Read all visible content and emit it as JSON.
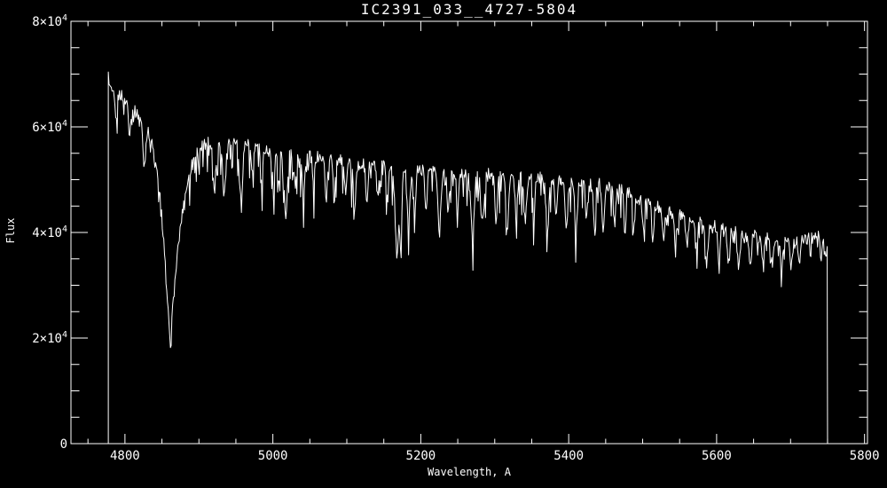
{
  "chart_data": {
    "type": "line",
    "title": "IC2391_033__4727-5804",
    "xlabel": "Wavelength, A",
    "ylabel": "Flux",
    "xlim": [
      4727,
      5804
    ],
    "ylim": [
      0,
      80000
    ],
    "grid": false,
    "background": "#000000",
    "line_color": "#ffffff",
    "x_ticks": [
      {
        "v": 4800,
        "label": "4800"
      },
      {
        "v": 5000,
        "label": "5000"
      },
      {
        "v": 5200,
        "label": "5200"
      },
      {
        "v": 5400,
        "label": "5400"
      },
      {
        "v": 5600,
        "label": "5600"
      },
      {
        "v": 5800,
        "label": "5800"
      }
    ],
    "x_minor_step": 50,
    "y_ticks": [
      {
        "v": 0,
        "mantissa": "0",
        "exp": ""
      },
      {
        "v": 20000,
        "mantissa": "2×10",
        "exp": "4"
      },
      {
        "v": 40000,
        "mantissa": "4×10",
        "exp": "4"
      },
      {
        "v": 60000,
        "mantissa": "6×10",
        "exp": "4"
      },
      {
        "v": 80000,
        "mantissa": "8×10",
        "exp": "4"
      }
    ],
    "y_minor_step": 5000,
    "series": [
      {
        "name": "spectrum",
        "data_start": 4777.5,
        "data_end": 5750,
        "zero_pad_start": 4727,
        "zero_pad_end": 5804,
        "sample_step": 1.0,
        "continuum": [
          [
            4777.5,
            69700
          ],
          [
            4781,
            67000
          ],
          [
            4786,
            65800
          ],
          [
            4792,
            66200
          ],
          [
            4800,
            65600
          ],
          [
            4806,
            64600
          ],
          [
            4812,
            63200
          ],
          [
            4818,
            62200
          ],
          [
            4824,
            61200
          ],
          [
            4830,
            59600
          ],
          [
            4836,
            57200
          ],
          [
            4842,
            52500
          ],
          [
            4848,
            46000
          ],
          [
            4853,
            37500
          ],
          [
            4857,
            28500
          ],
          [
            4861,
            18200
          ],
          [
            4865,
            26500
          ],
          [
            4870,
            34500
          ],
          [
            4875,
            41000
          ],
          [
            4880,
            46000
          ],
          [
            4886,
            50500
          ],
          [
            4892,
            53800
          ],
          [
            4899,
            55800
          ],
          [
            4908,
            57000
          ],
          [
            4920,
            57400
          ],
          [
            4945,
            57400
          ],
          [
            4965,
            56800
          ],
          [
            4985,
            56000
          ],
          [
            5010,
            55400
          ],
          [
            5040,
            54700
          ],
          [
            5070,
            54100
          ],
          [
            5100,
            53500
          ],
          [
            5130,
            52900
          ],
          [
            5160,
            52400
          ],
          [
            5190,
            52000
          ],
          [
            5220,
            51700
          ],
          [
            5250,
            51400
          ],
          [
            5280,
            51200
          ],
          [
            5310,
            50900
          ],
          [
            5340,
            50600
          ],
          [
            5370,
            50300
          ],
          [
            5400,
            50000
          ],
          [
            5425,
            49600
          ],
          [
            5450,
            49100
          ],
          [
            5470,
            48400
          ],
          [
            5490,
            47300
          ],
          [
            5510,
            45900
          ],
          [
            5530,
            44400
          ],
          [
            5550,
            43300
          ],
          [
            5570,
            42400
          ],
          [
            5590,
            41500
          ],
          [
            5610,
            40700
          ],
          [
            5630,
            40000
          ],
          [
            5650,
            39500
          ],
          [
            5670,
            39100
          ],
          [
            5690,
            38700
          ],
          [
            5705,
            38500
          ],
          [
            5720,
            38700
          ],
          [
            5735,
            39200
          ],
          [
            5745,
            39400
          ],
          [
            5750,
            38800
          ]
        ],
        "absorption_lines": [
          [
            4788,
            5000,
            1.4
          ],
          [
            4806,
            5500,
            1.4
          ],
          [
            4826,
            8000,
            1.8
          ],
          [
            4921,
            9500,
            1.8
          ],
          [
            4934,
            10500,
            1.8
          ],
          [
            4957,
            11000,
            2.0
          ],
          [
            4972,
            6000,
            1.4
          ],
          [
            4985,
            7000,
            1.4
          ],
          [
            5001,
            7500,
            1.5
          ],
          [
            5017.5,
            12500,
            2.0
          ],
          [
            5030,
            6000,
            1.4
          ],
          [
            5041.5,
            8500,
            1.5
          ],
          [
            5055,
            6000,
            1.4
          ],
          [
            5072,
            7000,
            1.5
          ],
          [
            5083,
            6000,
            1.4
          ],
          [
            5098,
            6000,
            1.4
          ],
          [
            5110.5,
            8500,
            1.8
          ],
          [
            5127,
            7000,
            1.5
          ],
          [
            5142,
            6500,
            1.5
          ],
          [
            5155,
            6000,
            1.4
          ],
          [
            5167.5,
            16500,
            2.0
          ],
          [
            5172.7,
            12000,
            1.8
          ],
          [
            5183.6,
            10500,
            1.8
          ],
          [
            5192,
            7500,
            1.4
          ],
          [
            5207,
            7500,
            1.5
          ],
          [
            5225,
            12000,
            1.8
          ],
          [
            5237,
            7500,
            1.5
          ],
          [
            5250,
            7000,
            1.5
          ],
          [
            5270,
            12000,
            2.2
          ],
          [
            5284,
            8000,
            1.8
          ],
          [
            5302,
            7500,
            1.5
          ],
          [
            5317,
            9500,
            1.8
          ],
          [
            5329,
            8000,
            1.5
          ],
          [
            5341,
            8500,
            1.8
          ],
          [
            5353,
            6500,
            1.5
          ],
          [
            5371,
            9500,
            1.8
          ],
          [
            5383,
            7500,
            1.5
          ],
          [
            5397,
            8500,
            1.8
          ],
          [
            5410,
            9500,
            1.8
          ],
          [
            5424,
            7000,
            1.5
          ],
          [
            5435,
            7500,
            1.5
          ],
          [
            5447,
            8500,
            1.8
          ],
          [
            5462,
            7000,
            1.5
          ],
          [
            5476,
            7500,
            1.5
          ],
          [
            5488,
            7000,
            1.5
          ],
          [
            5501,
            6000,
            1.5
          ],
          [
            5514,
            5500,
            1.5
          ],
          [
            5528,
            6000,
            1.8
          ],
          [
            5544,
            5000,
            1.5
          ],
          [
            5560,
            5500,
            1.5
          ],
          [
            5573,
            5000,
            1.5
          ],
          [
            5587,
            6000,
            1.8
          ],
          [
            5603,
            5500,
            1.5
          ],
          [
            5616,
            6000,
            1.5
          ],
          [
            5630,
            5000,
            1.5
          ],
          [
            5645,
            5500,
            1.5
          ],
          [
            5662,
            4500,
            1.5
          ],
          [
            5675,
            5000,
            1.5
          ],
          [
            5688,
            5500,
            1.5
          ],
          [
            5701,
            5000,
            1.5
          ],
          [
            5712,
            4500,
            1.5
          ],
          [
            5741,
            4000,
            1.2
          ],
          [
            5748,
            4500,
            1.2
          ]
        ],
        "noise": {
          "jitter": 1100,
          "spike_prob": 0.3,
          "spike_depth_anchors": [
            [
              4778,
              4500
            ],
            [
              4855,
              2500
            ],
            [
              4900,
              7000
            ],
            [
              5000,
              7500
            ],
            [
              5300,
              7000
            ],
            [
              5450,
              6800
            ],
            [
              5520,
              5000
            ],
            [
              5600,
              4200
            ],
            [
              5700,
              3800
            ],
            [
              5750,
              3200
            ]
          ]
        }
      }
    ]
  }
}
